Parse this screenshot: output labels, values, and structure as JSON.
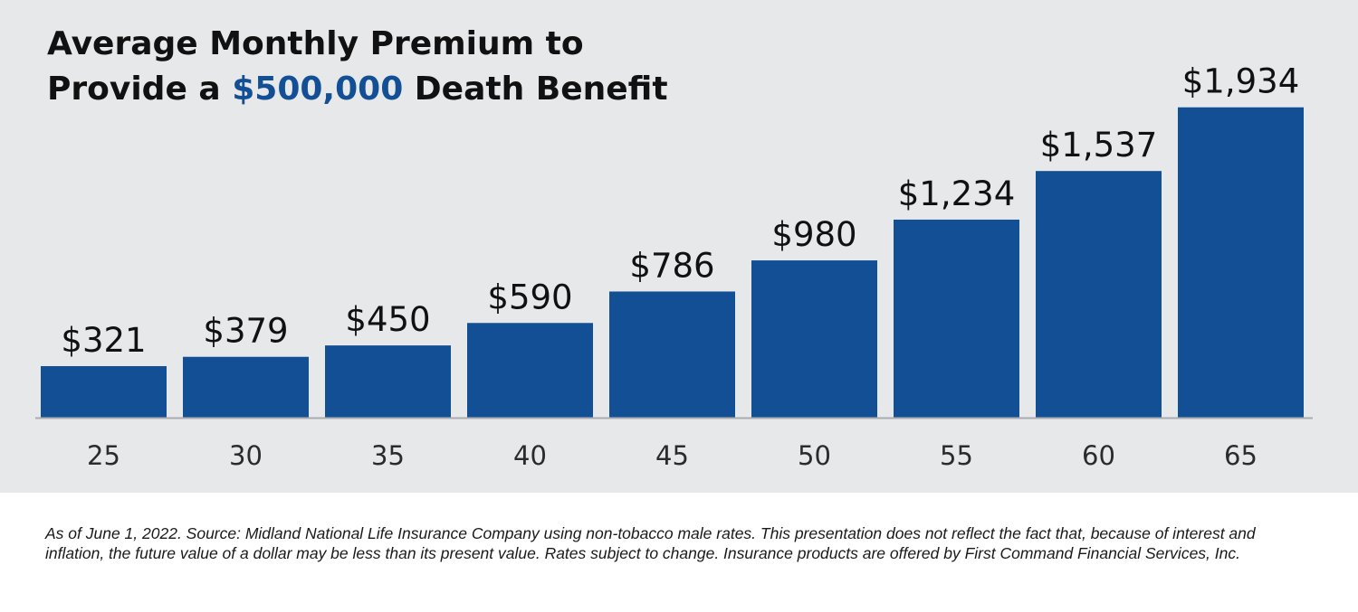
{
  "title": {
    "line1": "Average Monthly Premium to",
    "line2_prefix": "Provide a ",
    "line2_highlight": "$500,000",
    "line2_suffix": " Death Benefit"
  },
  "colors": {
    "panel": "#e7e8ea",
    "bar": "#134f94",
    "highlight": "#134f94",
    "axis": "#a9acb0",
    "text": "#111111"
  },
  "chart_data": {
    "type": "bar",
    "title": "Average Monthly Premium to Provide a $500,000 Death Benefit",
    "xlabel": "",
    "ylabel": "",
    "categories": [
      "25",
      "30",
      "35",
      "40",
      "45",
      "50",
      "55",
      "60",
      "65"
    ],
    "values": [
      321,
      379,
      450,
      590,
      786,
      980,
      1234,
      1537,
      1934
    ],
    "value_labels": [
      "$321",
      "$379",
      "$450",
      "$590",
      "$786",
      "$980",
      "$1,234",
      "$1,537",
      "$1,934"
    ],
    "ylim": [
      0,
      2000
    ],
    "grid": false,
    "legend": "none"
  },
  "footnote": "As of June 1, 2022. Source: Midland National Life Insurance Company using non-tobacco male rates. This presentation does not reflect the fact that, because of interest and inflation, the future value of a dollar may be less than its present value. Rates subject to change. Insurance products are offered by First Command Financial Services, Inc."
}
